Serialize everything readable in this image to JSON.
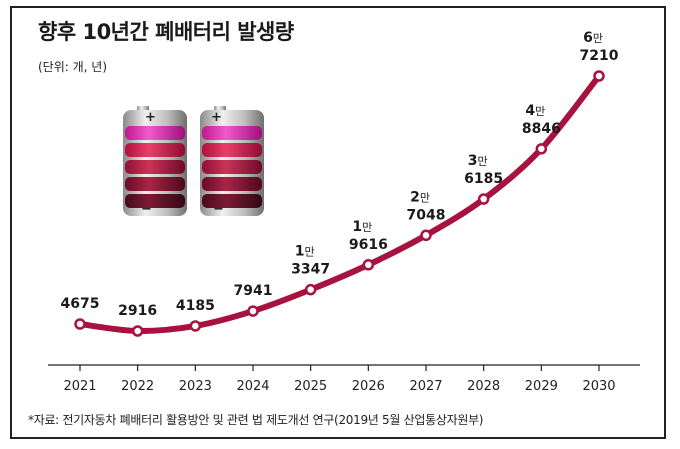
{
  "header": {
    "title": "향후 10년간 폐배터리 발생량",
    "unit": "(단위: 개, 년)"
  },
  "footer": {
    "source": "*자료: 전기자동차 폐배터리 활용방안 및 관련 법 제도개선 연구(2019년 5월 산업통상자원부)"
  },
  "colors": {
    "line": "#a8123e",
    "marker_fill": "#ffffff",
    "axis": "#222222"
  },
  "chart_data": {
    "type": "line",
    "title": "향후 10년간 폐배터리 발생량",
    "unit_label": "(단위: 개, 년)",
    "xlabel": "",
    "ylabel": "",
    "grid": false,
    "x": [
      "2021",
      "2022",
      "2023",
      "2024",
      "2025",
      "2026",
      "2027",
      "2028",
      "2029",
      "2030"
    ],
    "series": [
      {
        "name": "폐배터리 발생량",
        "values": [
          4675,
          2916,
          4185,
          7941,
          13347,
          19616,
          27048,
          36185,
          48846,
          67210
        ]
      }
    ],
    "labels": [
      {
        "man": "",
        "rest": "4675"
      },
      {
        "man": "",
        "rest": "2916"
      },
      {
        "man": "",
        "rest": "4185"
      },
      {
        "man": "",
        "rest": "7941"
      },
      {
        "man": "1만",
        "rest": "3347"
      },
      {
        "man": "1만",
        "rest": "9616"
      },
      {
        "man": "2만",
        "rest": "7048"
      },
      {
        "man": "3만",
        "rest": "6185"
      },
      {
        "man": "4만",
        "rest": "8846"
      },
      {
        "man": "6만",
        "rest": "7210"
      }
    ],
    "ylim": [
      0,
      70000
    ]
  },
  "illustration": {
    "battery_icons": [
      "battery-icon",
      "battery-icon"
    ],
    "plus_symbol": "+",
    "minus_symbol": "−"
  }
}
